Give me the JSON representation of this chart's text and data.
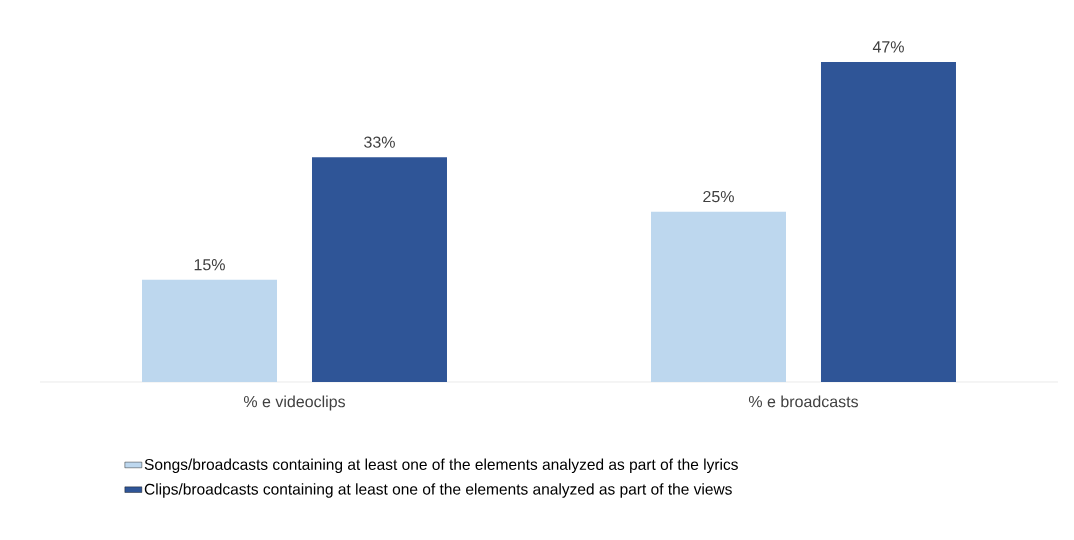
{
  "chart_data": {
    "type": "bar",
    "categories": [
      "% e videoclips",
      "% e broadcasts"
    ],
    "series": [
      {
        "name": "Songs/broadcasts containing at least one of the elements analyzed as part of the lyrics",
        "color": "#bdd7ee",
        "values": [
          15,
          25
        ],
        "value_labels": [
          "15%",
          "25%"
        ]
      },
      {
        "name": "Clips/broadcasts containing at least one of the elements analyzed as part of the views",
        "color": "#2f5597",
        "values": [
          33,
          47
        ],
        "value_labels": [
          "33%",
          "47%"
        ]
      }
    ],
    "legend": "bottom"
  }
}
